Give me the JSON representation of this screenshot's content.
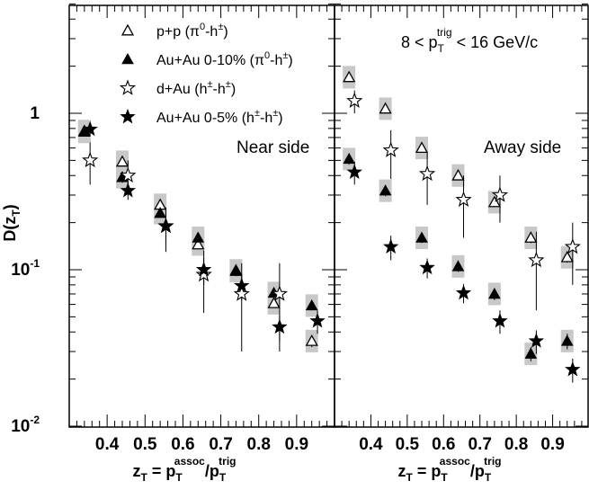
{
  "chart_data": [
    {
      "type": "scatter",
      "panel_label": "Near side",
      "ylabel": "D(z_T)",
      "xlabel": "z_T = p_T^assoc/p_T^trig",
      "x_ticks": [
        0.4,
        0.5,
        0.6,
        0.7,
        0.8,
        0.9
      ],
      "y_ticks": [
        "10^-2",
        "10^-1",
        "1"
      ],
      "xlim": [
        0.3,
        1.0
      ],
      "ylim": [
        0.01,
        5
      ],
      "y_scale": "log",
      "series": [
        {
          "name": "p+p (π0-h±)",
          "marker": "open-triangle",
          "x": [
            0.34,
            0.44,
            0.54,
            0.64,
            0.74,
            0.84,
            0.94
          ],
          "y": [
            0.77,
            0.49,
            0.26,
            0.145,
            0.099,
            0.061,
            0.035
          ],
          "err": [
            0.05,
            0.03,
            0.015,
            0.01,
            0.007,
            0.004,
            0.003
          ]
        },
        {
          "name": "Au+Au 0-10% (π0-h±)",
          "marker": "filled-triangle",
          "x": [
            0.34,
            0.44,
            0.54,
            0.64,
            0.74,
            0.84,
            0.94
          ],
          "y": [
            0.76,
            0.39,
            0.23,
            0.16,
            0.098,
            0.071,
            0.059
          ],
          "err": [
            0.05,
            0.03,
            0.015,
            0.01,
            0.007,
            0.005,
            0.004
          ]
        },
        {
          "name": "d+Au (h±-h±)",
          "marker": "open-star",
          "x": [
            0.355,
            0.455,
            0.555,
            0.655,
            0.755,
            0.855
          ],
          "y": [
            0.5,
            0.4,
            0.19,
            0.093,
            0.07,
            0.07
          ],
          "err": [
            0.15,
            0.1,
            0.06,
            0.04,
            0.04,
            0.04
          ]
        },
        {
          "name": "Au+Au 0-5% (h±-h±)",
          "marker": "filled-star",
          "x": [
            0.355,
            0.455,
            0.555,
            0.655,
            0.755,
            0.855,
            0.955
          ],
          "y": [
            0.79,
            0.32,
            0.19,
            0.1,
            0.079,
            0.043,
            0.047
          ],
          "err": [
            0.06,
            0.04,
            0.04,
            0.02,
            0.015,
            0.008,
            0.008
          ]
        }
      ]
    },
    {
      "type": "scatter",
      "panel_label": "Away side",
      "xlabel": "z_T = p_T^assoc/p_T^trig",
      "x_ticks": [
        0.4,
        0.5,
        0.6,
        0.7,
        0.8,
        0.9
      ],
      "xlim": [
        0.3,
        1.0
      ],
      "ylim": [
        0.01,
        5
      ],
      "y_scale": "log",
      "series": [
        {
          "name": "p+p (π0-h±)",
          "marker": "open-triangle",
          "x": [
            0.34,
            0.44,
            0.54,
            0.64,
            0.74,
            0.84,
            0.94
          ],
          "y": [
            1.7,
            1.07,
            0.6,
            0.4,
            0.27,
            0.16,
            0.12
          ],
          "err": [
            0.1,
            0.06,
            0.04,
            0.025,
            0.018,
            0.012,
            0.009
          ]
        },
        {
          "name": "Au+Au 0-10% (π0-h±)",
          "marker": "filled-triangle",
          "x": [
            0.34,
            0.44,
            0.54,
            0.64,
            0.74,
            0.84,
            0.94
          ],
          "y": [
            0.51,
            0.32,
            0.16,
            0.105,
            0.07,
            0.029,
            0.035
          ],
          "err": [
            0.04,
            0.025,
            0.012,
            0.008,
            0.006,
            0.003,
            0.004
          ]
        },
        {
          "name": "d+Au (h±-h±)",
          "marker": "open-star",
          "x": [
            0.355,
            0.455,
            0.555,
            0.655,
            0.755,
            0.855,
            0.955
          ],
          "y": [
            1.2,
            0.58,
            0.41,
            0.28,
            0.3,
            0.115,
            0.14
          ],
          "err": [
            0.2,
            0.2,
            0.15,
            0.12,
            0.1,
            0.06,
            0.06
          ]
        },
        {
          "name": "Au+Au 0-5% (h±-h±)",
          "marker": "filled-star",
          "x": [
            0.355,
            0.455,
            0.555,
            0.655,
            0.755,
            0.855,
            0.955
          ],
          "y": [
            0.42,
            0.14,
            0.103,
            0.071,
            0.047,
            0.035,
            0.023
          ],
          "err": [
            0.07,
            0.025,
            0.015,
            0.01,
            0.008,
            0.006,
            0.004
          ]
        }
      ]
    }
  ],
  "legend": {
    "entries": [
      {
        "marker": "open-triangle",
        "text": "p+p (π",
        "sup1": "0",
        "text2": "-h",
        "sup2": "±",
        "text3": ")"
      },
      {
        "marker": "filled-triangle",
        "text": "Au+Au 0-10% (π",
        "sup1": "0",
        "text2": "-h",
        "sup2": "±",
        "text3": ")"
      },
      {
        "marker": "open-star",
        "text": "d+Au (h",
        "sup1": "±",
        "text2": "-h",
        "sup2": "±",
        "text3": ")"
      },
      {
        "marker": "filled-star",
        "text": "Au+Au 0-5% (h",
        "sup1": "±",
        "text2": "-h",
        "sup2": "±",
        "text3": ")"
      }
    ]
  },
  "trigger_label": {
    "pre": "8 < p",
    "sub": "T",
    "sup": "trig",
    "post": " < 16 GeV/c"
  },
  "axis": {
    "y_main": "D(z",
    "y_sub": "T",
    "y_close": ")",
    "x_main": "z",
    "x_sub": "T",
    "x_eq": " = p",
    "x_sub2": "T",
    "x_sup2": "assoc",
    "x_slash": "/p",
    "x_sub3": "T",
    "x_sup3": "trig",
    "y_tick_base": "10",
    "y_tick_exp_m2": "-2",
    "y_tick_exp_m1": "-1",
    "y_tick_one": "1"
  }
}
